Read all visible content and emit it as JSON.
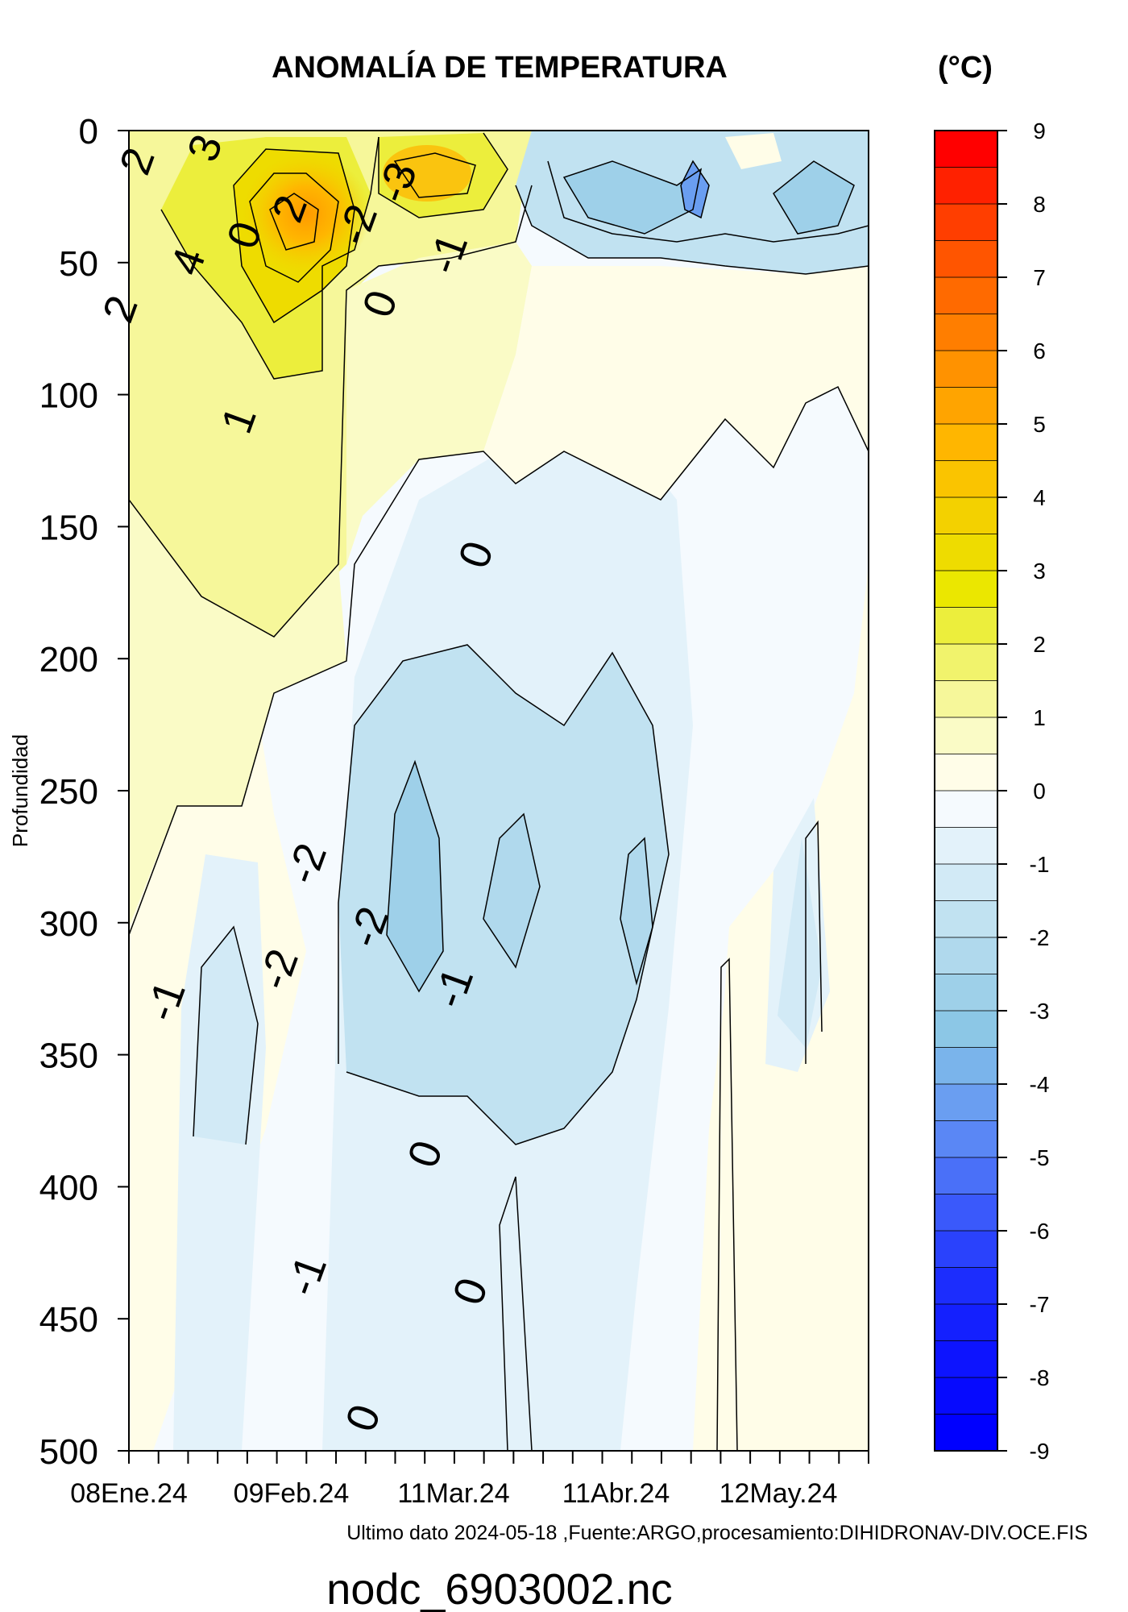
{
  "chart_data": {
    "type": "heatmap",
    "title": "ANOMALÍA DE TEMPERATURA",
    "unit_label": "(°C)",
    "ylabel": "Profundidad",
    "xlabel": "",
    "y_ticks": [
      "0",
      "50",
      "100",
      "150",
      "200",
      "250",
      "300",
      "350",
      "400",
      "450",
      "500"
    ],
    "ylim": [
      0,
      500
    ],
    "y_reversed": true,
    "x_ticks": [
      "08Ene.24",
      "09Feb.24",
      "11Mar.24",
      "11Abr.24",
      "12May.24"
    ],
    "colorbar": {
      "ticks": [
        "9",
        "8",
        "7",
        "6",
        "5",
        "4",
        "3",
        "2",
        "1",
        "0",
        "-1",
        "-2",
        "-3",
        "-4",
        "-5",
        "-6",
        "-7",
        "-8",
        "-9"
      ],
      "range": [
        -9,
        9
      ],
      "step": 0.5,
      "colors_high_to_low": [
        "#ff0000",
        "#ff2100",
        "#ff3e00",
        "#ff5500",
        "#ff6a00",
        "#ff7e00",
        "#ff9200",
        "#ffa400",
        "#ffb600",
        "#fac400",
        "#f3d100",
        "#eedc00",
        "#ebe700",
        "#ecee3c",
        "#f1f36c",
        "#f6f79a",
        "#fafbc6",
        "#fffde8",
        "#f5fafe",
        "#e3f2fa",
        "#d2eaf6",
        "#c1e2f1",
        "#b0d9ed",
        "#9ed0e9",
        "#8cc7e6",
        "#7ab4eb",
        "#6a9ef1",
        "#5a87f5",
        "#4a70f8",
        "#3a59fb",
        "#2a42fc",
        "#1c2dfd",
        "#1420fe",
        "#0d14fe",
        "#060afe",
        "#0000ff"
      ]
    },
    "contour_labels": [
      {
        "text": "2",
        "day": 2,
        "depth": 12
      },
      {
        "text": "3",
        "day": 14,
        "depth": 7
      },
      {
        "text": "4",
        "day": 11,
        "depth": 50
      },
      {
        "text": "2",
        "day": -1,
        "depth": 68
      },
      {
        "text": "0",
        "day": 21,
        "depth": 40
      },
      {
        "text": "2",
        "day": 29,
        "depth": 30
      },
      {
        "text": "-3",
        "day": 48,
        "depth": 20
      },
      {
        "text": "-2",
        "day": 41,
        "depth": 36
      },
      {
        "text": "-1",
        "day": 57,
        "depth": 47
      },
      {
        "text": "0",
        "day": 45,
        "depth": 66
      },
      {
        "text": "1",
        "day": 20,
        "depth": 110
      },
      {
        "text": "0",
        "day": 62,
        "depth": 161
      },
      {
        "text": "-1",
        "day": 7,
        "depth": 330
      },
      {
        "text": "-2",
        "day": 27,
        "depth": 318
      },
      {
        "text": "-2",
        "day": 32,
        "depth": 278
      },
      {
        "text": "-2",
        "day": 43,
        "depth": 302
      },
      {
        "text": "-1",
        "day": 58,
        "depth": 325
      },
      {
        "text": "0",
        "day": 53,
        "depth": 388
      },
      {
        "text": "-1",
        "day": 32,
        "depth": 434
      },
      {
        "text": "0",
        "day": 61,
        "depth": 440
      },
      {
        "text": "0",
        "day": 42,
        "depth": 488
      }
    ]
  },
  "footer": {
    "source": "Ultimo dato 2024-05-18 ,Fuente:ARGO,procesamiento:DIHIDRONAV-DIV.OCE.FIS",
    "filename": "nodc_6903002.nc"
  }
}
